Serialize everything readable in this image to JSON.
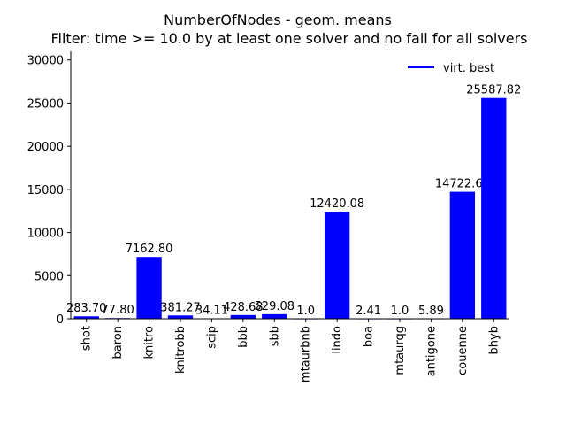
{
  "chart_data": {
    "type": "bar",
    "title": "NumberOfNodes - geom. means",
    "subtitle": "Filter: time >= 10.0 by at least one solver and no fail for all solvers",
    "xlabel": "",
    "ylabel": "",
    "categories": [
      "shot",
      "baron",
      "knitro",
      "knitrobb",
      "scip",
      "bbb",
      "sbb",
      "mtaurbnb",
      "lindo",
      "boa",
      "mtaurqg",
      "antigone",
      "couenne",
      "bhyb"
    ],
    "values": [
      283.7,
      77.8,
      7162.8,
      381.27,
      34.11,
      428.68,
      529.08,
      1.0,
      12420.08,
      2.41,
      1.0,
      5.89,
      14722.67,
      25587.82
    ],
    "value_labels": [
      "283.70",
      "77.80",
      "7162.80",
      "381.27",
      "34.11",
      "428.68",
      "529.08",
      "1.0",
      "12420.08",
      "2.41",
      "1.0",
      "5.89",
      "14722.67",
      "25587.82"
    ],
    "ylim": [
      0,
      31000
    ],
    "yticks": [
      0,
      5000,
      10000,
      15000,
      20000,
      25000,
      30000
    ],
    "bar_color": "#0000ff",
    "legend": {
      "entries": [
        "virt. best"
      ],
      "placement": "top-right",
      "line_color": "#0000ff"
    },
    "grid": false
  }
}
